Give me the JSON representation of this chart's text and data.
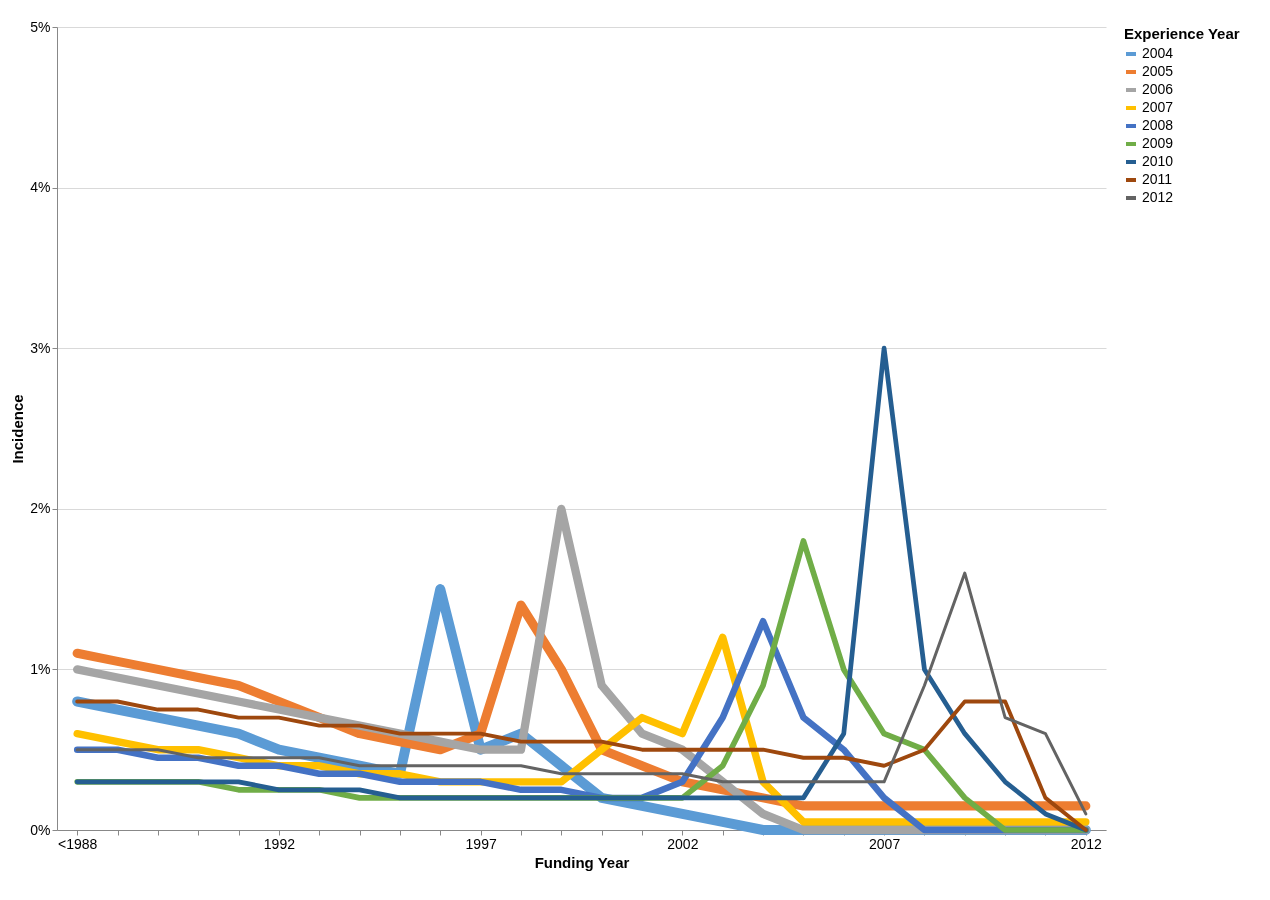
{
  "chart_data": {
    "type": "line",
    "xlabel": "Funding Year",
    "ylabel": "Incidence",
    "legend_title": "Experience Year",
    "categories": [
      "<1988",
      null,
      null,
      null,
      null,
      "1992",
      null,
      null,
      null,
      null,
      "1997",
      null,
      null,
      null,
      null,
      "2002",
      null,
      null,
      null,
      null,
      "2007",
      null,
      null,
      null,
      null,
      "2012"
    ],
    "ylim": [
      0,
      5
    ],
    "yticks": [
      {
        "value": 0,
        "label": "0%"
      },
      {
        "value": 1,
        "label": "1%"
      },
      {
        "value": 2,
        "label": "2%"
      },
      {
        "value": 3,
        "label": "3%"
      },
      {
        "value": 4,
        "label": "4%"
      },
      {
        "value": 5,
        "label": "5%"
      }
    ],
    "grid": "y",
    "legend": "right",
    "series": [
      {
        "name": "2004",
        "color": "#5b9bd5",
        "values": [
          0.8,
          0.75,
          0.7,
          0.65,
          0.6,
          0.5,
          0.45,
          0.4,
          0.35,
          1.5,
          0.5,
          0.6,
          0.4,
          0.2,
          0.15,
          0.1,
          0.05,
          0,
          0,
          0,
          0,
          0,
          0,
          0,
          0,
          0
        ]
      },
      {
        "name": "2005",
        "color": "#ed7d31",
        "values": [
          1.1,
          1.05,
          1.0,
          0.95,
          0.9,
          0.8,
          0.7,
          0.6,
          0.55,
          0.5,
          0.6,
          1.4,
          1.0,
          0.5,
          0.4,
          0.3,
          0.25,
          0.2,
          0.15,
          0.15,
          0.15,
          0.15,
          0.15,
          0.15,
          0.15,
          0.15
        ]
      },
      {
        "name": "2006",
        "color": "#a5a5a5",
        "values": [
          1.0,
          0.95,
          0.9,
          0.85,
          0.8,
          0.75,
          0.7,
          0.65,
          0.6,
          0.55,
          0.5,
          0.5,
          2.0,
          0.9,
          0.6,
          0.5,
          0.3,
          0.1,
          0,
          0,
          0,
          0,
          0,
          0,
          0,
          0
        ]
      },
      {
        "name": "2007",
        "color": "#ffc000",
        "values": [
          0.6,
          0.55,
          0.5,
          0.5,
          0.45,
          0.4,
          0.4,
          0.35,
          0.35,
          0.3,
          0.3,
          0.3,
          0.3,
          0.5,
          0.7,
          0.6,
          1.2,
          0.3,
          0.05,
          0.05,
          0.05,
          0.05,
          0.05,
          0.05,
          0.05,
          0.05
        ]
      },
      {
        "name": "2008",
        "color": "#4472c4",
        "values": [
          0.5,
          0.5,
          0.45,
          0.45,
          0.4,
          0.4,
          0.35,
          0.35,
          0.3,
          0.3,
          0.3,
          0.25,
          0.25,
          0.2,
          0.2,
          0.3,
          0.7,
          1.3,
          0.7,
          0.5,
          0.2,
          0,
          0,
          0,
          0,
          0
        ]
      },
      {
        "name": "2009",
        "color": "#70ad47",
        "values": [
          0.3,
          0.3,
          0.3,
          0.3,
          0.25,
          0.25,
          0.25,
          0.2,
          0.2,
          0.2,
          0.2,
          0.2,
          0.2,
          0.2,
          0.2,
          0.2,
          0.4,
          0.9,
          1.8,
          1.0,
          0.6,
          0.5,
          0.2,
          0,
          0,
          0
        ]
      },
      {
        "name": "2010",
        "color": "#255e91",
        "values": [
          0.3,
          0.3,
          0.3,
          0.3,
          0.3,
          0.25,
          0.25,
          0.25,
          0.2,
          0.2,
          0.2,
          0.2,
          0.2,
          0.2,
          0.2,
          0.2,
          0.2,
          0.2,
          0.2,
          0.6,
          3.0,
          1.0,
          0.6,
          0.3,
          0.1,
          0
        ]
      },
      {
        "name": "2011",
        "color": "#9e480e",
        "values": [
          0.8,
          0.8,
          0.75,
          0.75,
          0.7,
          0.7,
          0.65,
          0.65,
          0.6,
          0.6,
          0.6,
          0.55,
          0.55,
          0.55,
          0.5,
          0.5,
          0.5,
          0.5,
          0.45,
          0.45,
          0.4,
          0.5,
          0.8,
          0.8,
          0.2,
          0
        ]
      },
      {
        "name": "2012",
        "color": "#636363",
        "values": [
          0.5,
          0.5,
          0.5,
          0.45,
          0.45,
          0.45,
          0.45,
          0.4,
          0.4,
          0.4,
          0.4,
          0.4,
          0.35,
          0.35,
          0.35,
          0.35,
          0.3,
          0.3,
          0.3,
          0.3,
          0.3,
          0.9,
          1.6,
          0.7,
          0.6,
          0.1
        ]
      }
    ]
  }
}
